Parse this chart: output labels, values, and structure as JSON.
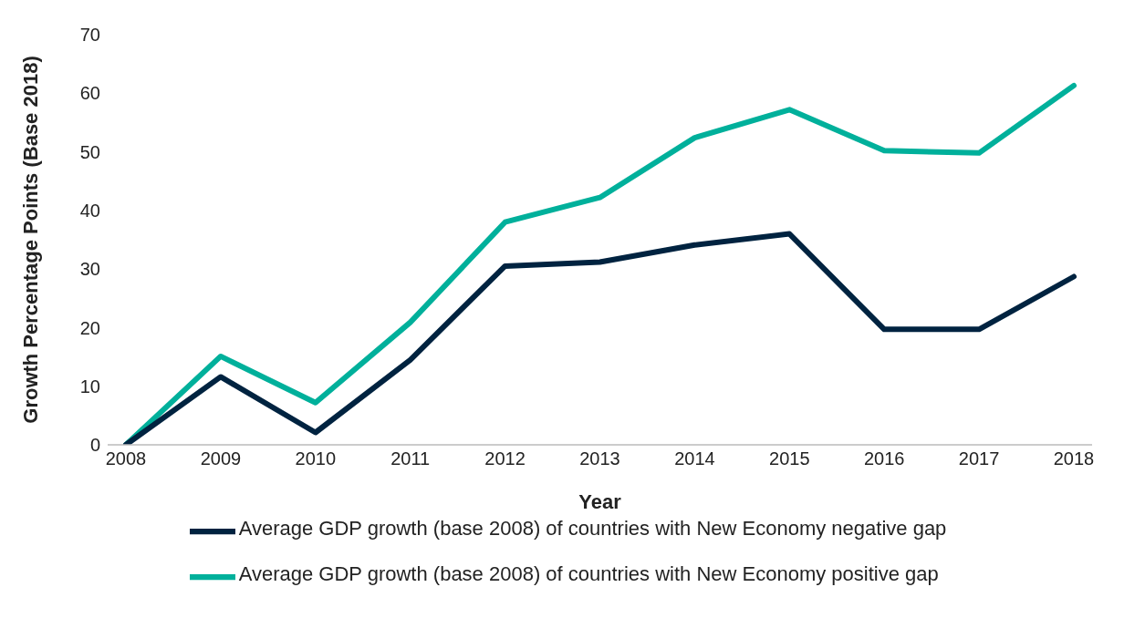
{
  "chart_data": {
    "type": "line",
    "xlabel": "Year",
    "ylabel": "Growth  Percentage Points (Base 2018)",
    "categories": [
      "2008",
      "2009",
      "2010",
      "2011",
      "2012",
      "2013",
      "2014",
      "2015",
      "2016",
      "2017",
      "2018"
    ],
    "series": [
      {
        "name": "Average GDP growth (base 2008) of countries with New Economy positive gap",
        "color": "#00b09b",
        "values": [
          0,
          15.1,
          7.2,
          20.9,
          38,
          42.2,
          52.4,
          57.2,
          50.2,
          49.8,
          61.3
        ]
      },
      {
        "name": "Average GDP growth (base 2008) of countries with New Economy negative gap",
        "color": "#002340",
        "values": [
          0,
          11.6,
          2.1,
          14.5,
          30.5,
          31.2,
          34.1,
          36,
          19.7,
          19.7,
          28.7
        ]
      }
    ],
    "ylim": [
      0,
      70
    ],
    "yticks": [
      0,
      10,
      20,
      30,
      40,
      50,
      60,
      70
    ],
    "grid": false,
    "legend": "bottom",
    "marker": "none",
    "line_style": "solid"
  }
}
